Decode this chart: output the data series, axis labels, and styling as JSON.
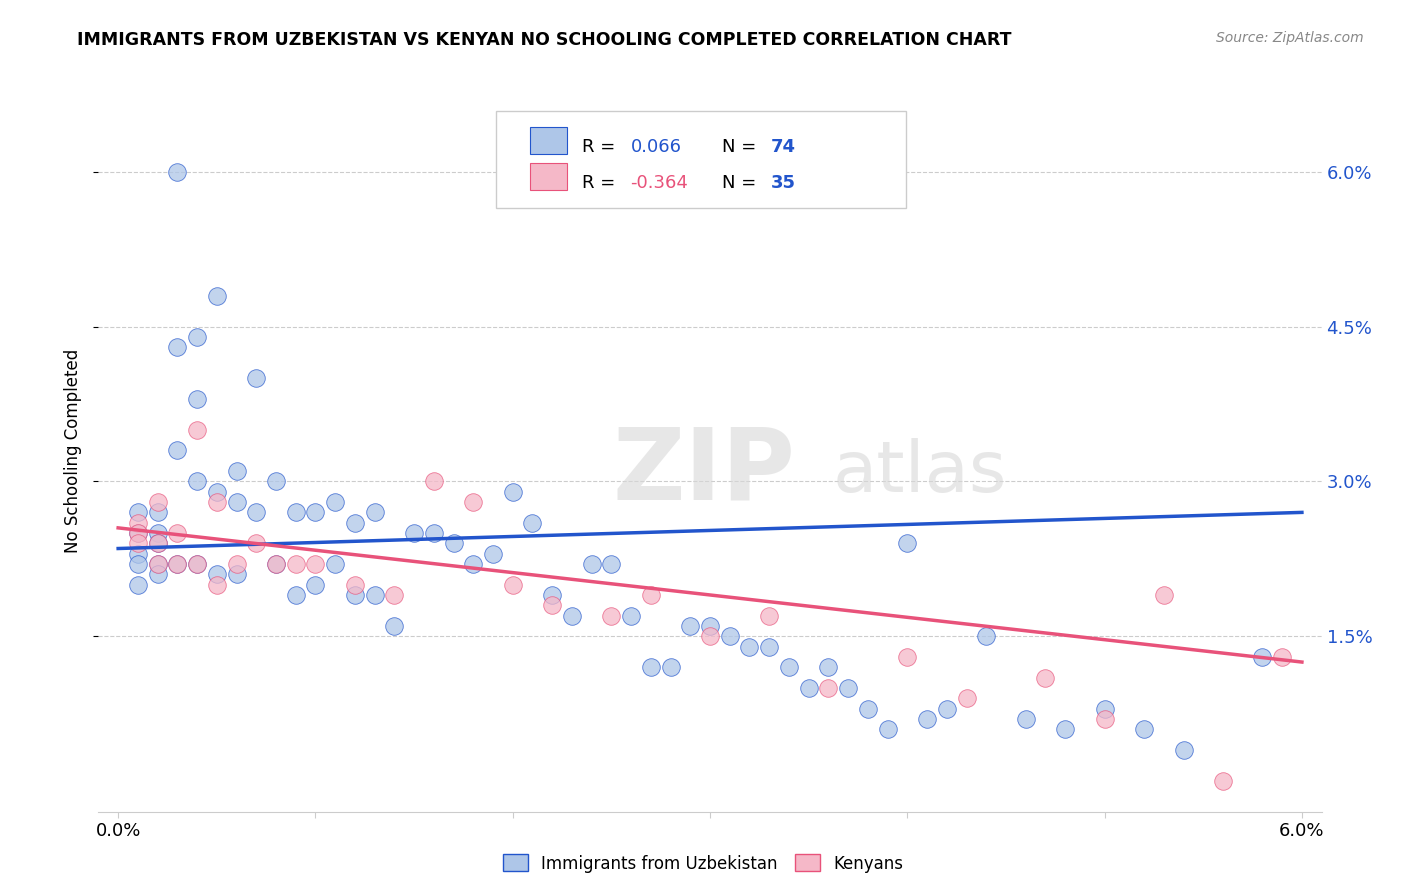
{
  "title": "IMMIGRANTS FROM UZBEKISTAN VS KENYAN NO SCHOOLING COMPLETED CORRELATION CHART",
  "source": "Source: ZipAtlas.com",
  "ylabel_label": "No Schooling Completed",
  "xlim": [
    0.0,
    0.06
  ],
  "ylim": [
    -0.002,
    0.068
  ],
  "x_tick_vals": [
    0.0,
    0.01,
    0.02,
    0.03,
    0.04,
    0.05,
    0.06
  ],
  "x_tick_labels": [
    "0.0%",
    "",
    "",
    "",
    "",
    "",
    "6.0%"
  ],
  "y_tick_vals": [
    0.015,
    0.03,
    0.045,
    0.06
  ],
  "y_tick_labels": [
    "1.5%",
    "3.0%",
    "4.5%",
    "6.0%"
  ],
  "color_blue": "#aec6e8",
  "color_pink": "#f5b8c8",
  "line_blue": "#2255cc",
  "line_pink": "#e8527a",
  "uzbek_trend_start": 0.0235,
  "uzbek_trend_end": 0.027,
  "kenyan_trend_start": 0.0255,
  "kenyan_trend_end": 0.0125,
  "uzbek_x": [
    0.001,
    0.001,
    0.001,
    0.001,
    0.001,
    0.002,
    0.002,
    0.002,
    0.002,
    0.002,
    0.003,
    0.003,
    0.003,
    0.003,
    0.004,
    0.004,
    0.004,
    0.004,
    0.005,
    0.005,
    0.005,
    0.006,
    0.006,
    0.006,
    0.007,
    0.007,
    0.008,
    0.008,
    0.009,
    0.009,
    0.01,
    0.01,
    0.011,
    0.011,
    0.012,
    0.012,
    0.013,
    0.013,
    0.014,
    0.015,
    0.016,
    0.017,
    0.018,
    0.019,
    0.02,
    0.021,
    0.022,
    0.023,
    0.024,
    0.025,
    0.026,
    0.027,
    0.028,
    0.029,
    0.03,
    0.031,
    0.032,
    0.033,
    0.034,
    0.035,
    0.036,
    0.037,
    0.038,
    0.039,
    0.04,
    0.041,
    0.042,
    0.044,
    0.046,
    0.048,
    0.05,
    0.052,
    0.054,
    0.058
  ],
  "uzbek_y": [
    0.027,
    0.025,
    0.023,
    0.022,
    0.02,
    0.027,
    0.025,
    0.024,
    0.022,
    0.021,
    0.06,
    0.043,
    0.033,
    0.022,
    0.044,
    0.038,
    0.03,
    0.022,
    0.048,
    0.029,
    0.021,
    0.031,
    0.028,
    0.021,
    0.04,
    0.027,
    0.03,
    0.022,
    0.027,
    0.019,
    0.027,
    0.02,
    0.028,
    0.022,
    0.026,
    0.019,
    0.027,
    0.019,
    0.016,
    0.025,
    0.025,
    0.024,
    0.022,
    0.023,
    0.029,
    0.026,
    0.019,
    0.017,
    0.022,
    0.022,
    0.017,
    0.012,
    0.012,
    0.016,
    0.016,
    0.015,
    0.014,
    0.014,
    0.012,
    0.01,
    0.012,
    0.01,
    0.008,
    0.006,
    0.024,
    0.007,
    0.008,
    0.015,
    0.007,
    0.006,
    0.008,
    0.006,
    0.004,
    0.013
  ],
  "kenyan_x": [
    0.001,
    0.001,
    0.001,
    0.002,
    0.002,
    0.002,
    0.003,
    0.003,
    0.004,
    0.004,
    0.005,
    0.005,
    0.006,
    0.007,
    0.008,
    0.009,
    0.01,
    0.012,
    0.014,
    0.016,
    0.018,
    0.02,
    0.022,
    0.025,
    0.027,
    0.03,
    0.033,
    0.036,
    0.04,
    0.043,
    0.047,
    0.05,
    0.053,
    0.056,
    0.059
  ],
  "kenyan_y": [
    0.026,
    0.025,
    0.024,
    0.028,
    0.024,
    0.022,
    0.025,
    0.022,
    0.035,
    0.022,
    0.028,
    0.02,
    0.022,
    0.024,
    0.022,
    0.022,
    0.022,
    0.02,
    0.019,
    0.03,
    0.028,
    0.02,
    0.018,
    0.017,
    0.019,
    0.015,
    0.017,
    0.01,
    0.013,
    0.009,
    0.011,
    0.007,
    0.019,
    0.001,
    0.013
  ]
}
